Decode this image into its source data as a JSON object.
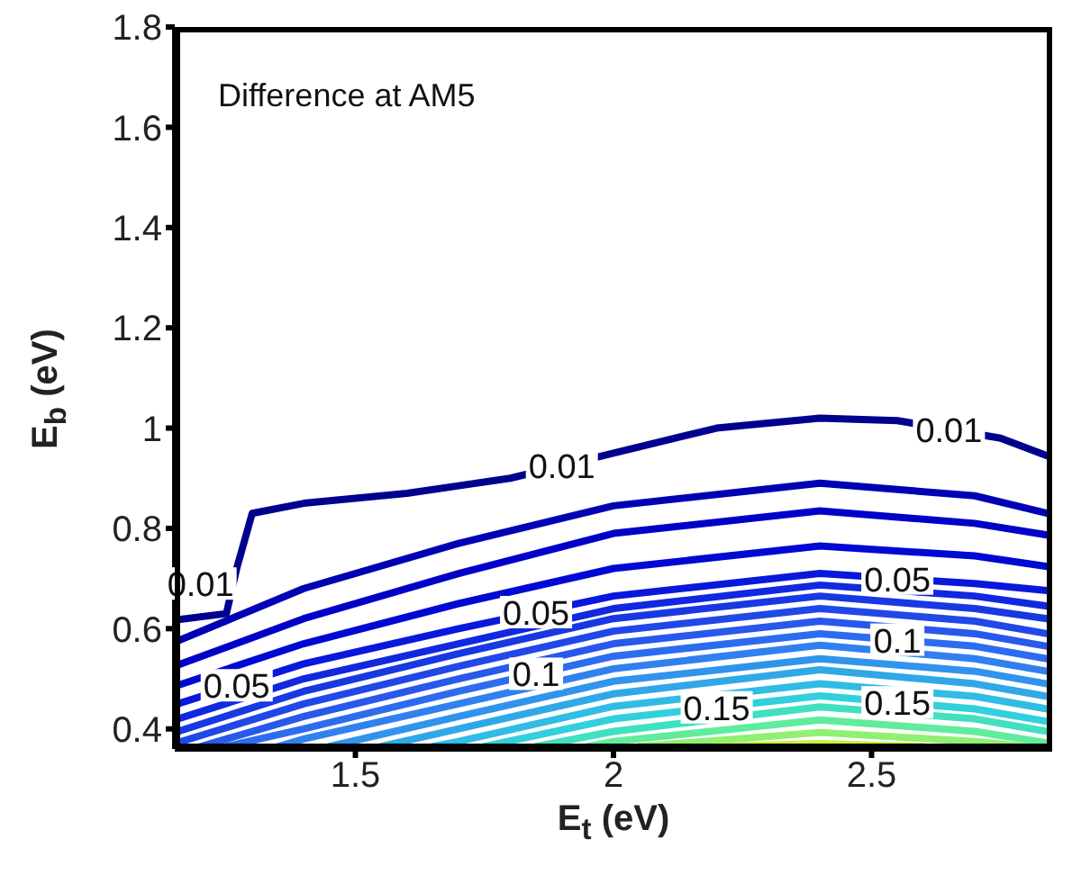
{
  "chart_data": {
    "type": "line",
    "xlabel": "E$_{t}$ (eV)",
    "ylabel": "E$_{b}$ (eV)",
    "xlim": [
      1.15,
      2.85
    ],
    "xticks": [
      1.5,
      2,
      2.5
    ],
    "ylim": [
      0.36,
      1.8
    ],
    "yticks": [
      0.4,
      0.6,
      0.8,
      1,
      1.2,
      1.4,
      1.6,
      1.8
    ],
    "grid": false,
    "marker": "none",
    "line_style": "solid",
    "series": [
      {
        "color": "#00008f",
        "x": [
          1.15,
          1.25,
          1.27,
          1.3,
          1.4,
          1.6,
          1.8,
          2.0,
          2.2,
          2.4,
          2.55,
          2.75,
          2.84
        ],
        "values": [
          0.617,
          0.63,
          0.72,
          0.83,
          0.85,
          0.87,
          0.9,
          0.95,
          1.0,
          1.02,
          1.015,
          0.98,
          0.945
        ]
      },
      {
        "color": "#0000b4",
        "x": [
          1.15,
          1.4,
          1.7,
          2.0,
          2.4,
          2.7,
          2.84
        ],
        "values": [
          0.573,
          0.68,
          0.77,
          0.845,
          0.89,
          0.865,
          0.83
        ]
      },
      {
        "color": "#0000c8",
        "x": [
          1.15,
          1.4,
          1.7,
          2.0,
          2.4,
          2.7,
          2.84
        ],
        "values": [
          0.525,
          0.62,
          0.71,
          0.79,
          0.835,
          0.81,
          0.787
        ]
      },
      {
        "color": "#0008d4",
        "x": [
          1.15,
          1.4,
          1.7,
          2.0,
          2.4,
          2.7,
          2.84
        ],
        "values": [
          0.485,
          0.57,
          0.65,
          0.72,
          0.765,
          0.745,
          0.724
        ]
      },
      {
        "color": "#0818dc",
        "x": [
          1.15,
          1.4,
          1.7,
          2.0,
          2.4,
          2.7,
          2.84
        ],
        "values": [
          0.448,
          0.53,
          0.6,
          0.665,
          0.71,
          0.69,
          0.676
        ]
      },
      {
        "color": "#1028e0",
        "x": [
          1.15,
          1.4,
          1.7,
          2.0,
          2.4,
          2.7,
          2.84
        ],
        "values": [
          0.418,
          0.5,
          0.57,
          0.64,
          0.687,
          0.665,
          0.645
        ]
      },
      {
        "color": "#1838e4",
        "x": [
          1.15,
          1.4,
          1.7,
          2.0,
          2.4,
          2.7,
          2.84
        ],
        "values": [
          0.393,
          0.475,
          0.55,
          0.62,
          0.665,
          0.64,
          0.62
        ]
      },
      {
        "color": "#2048e8",
        "x": [
          1.15,
          1.4,
          1.7,
          2.0,
          2.4,
          2.7,
          2.84
        ],
        "values": [
          0.371,
          0.45,
          0.525,
          0.595,
          0.64,
          0.615,
          0.59
        ]
      },
      {
        "color": "#2858ec",
        "x": [
          1.2,
          1.4,
          1.7,
          2.0,
          2.4,
          2.7,
          2.84
        ],
        "values": [
          0.365,
          0.425,
          0.5,
          0.57,
          0.615,
          0.59,
          0.565
        ]
      },
      {
        "color": "#2c6cf0",
        "x": [
          1.25,
          1.4,
          1.7,
          2.0,
          2.4,
          2.7,
          2.84
        ],
        "values": [
          0.365,
          0.4,
          0.475,
          0.545,
          0.59,
          0.565,
          0.54
        ]
      },
      {
        "color": "#3080f0",
        "x": [
          1.35,
          1.4,
          1.7,
          2.0,
          2.4,
          2.7,
          2.84
        ],
        "values": [
          0.365,
          0.38,
          0.45,
          0.52,
          0.567,
          0.54,
          0.515
        ]
      },
      {
        "color": "#3094ec",
        "x": [
          1.45,
          1.7,
          2.0,
          2.4,
          2.7,
          2.84
        ],
        "values": [
          0.365,
          0.425,
          0.495,
          0.54,
          0.515,
          0.49
        ]
      },
      {
        "color": "#30a8e8",
        "x": [
          1.55,
          1.7,
          2.0,
          2.4,
          2.7,
          2.84
        ],
        "values": [
          0.365,
          0.4,
          0.47,
          0.518,
          0.49,
          0.465
        ]
      },
      {
        "color": "#30bce4",
        "x": [
          1.65,
          1.7,
          2.0,
          2.4,
          2.7,
          2.84
        ],
        "values": [
          0.365,
          0.375,
          0.445,
          0.49,
          0.465,
          0.44
        ]
      },
      {
        "color": "#30d0dc",
        "x": [
          1.75,
          2.0,
          2.4,
          2.7,
          2.84
        ],
        "values": [
          0.365,
          0.42,
          0.466,
          0.44,
          0.415
        ]
      },
      {
        "color": "#40e0c0",
        "x": [
          1.85,
          2.0,
          2.4,
          2.7,
          2.84
        ],
        "values": [
          0.365,
          0.395,
          0.444,
          0.42,
          0.395
        ]
      },
      {
        "color": "#60ec9c",
        "x": [
          1.95,
          2.0,
          2.4,
          2.7,
          2.84
        ],
        "values": [
          0.365,
          0.375,
          0.418,
          0.395,
          0.372
        ]
      },
      {
        "color": "#90f070",
        "x": [
          2.05,
          2.4,
          2.7,
          2.8
        ],
        "values": [
          0.365,
          0.393,
          0.375,
          0.365
        ]
      },
      {
        "color": "#c8f040",
        "x": [
          2.2,
          2.4,
          2.6
        ],
        "values": [
          0.365,
          0.371,
          0.365
        ]
      }
    ],
    "annotations": [
      "Difference at AM5",
      {
        "text": "0.01",
        "x": 1.2,
        "y": 0.69
      },
      {
        "text": "0.01",
        "x": 1.9,
        "y": 0.925
      },
      {
        "text": "0.01",
        "x": 2.65,
        "y": 0.997
      },
      {
        "text": "0.05",
        "x": 1.27,
        "y": 0.487
      },
      {
        "text": "0.05",
        "x": 1.85,
        "y": 0.633
      },
      {
        "text": "0.05",
        "x": 2.55,
        "y": 0.7
      },
      {
        "text": "0.1",
        "x": 1.85,
        "y": 0.51
      },
      {
        "text": "0.1",
        "x": 2.55,
        "y": 0.578
      },
      {
        "text": "0.15",
        "x": 2.2,
        "y": 0.443
      },
      {
        "text": "0.15",
        "x": 2.55,
        "y": 0.453
      }
    ]
  }
}
